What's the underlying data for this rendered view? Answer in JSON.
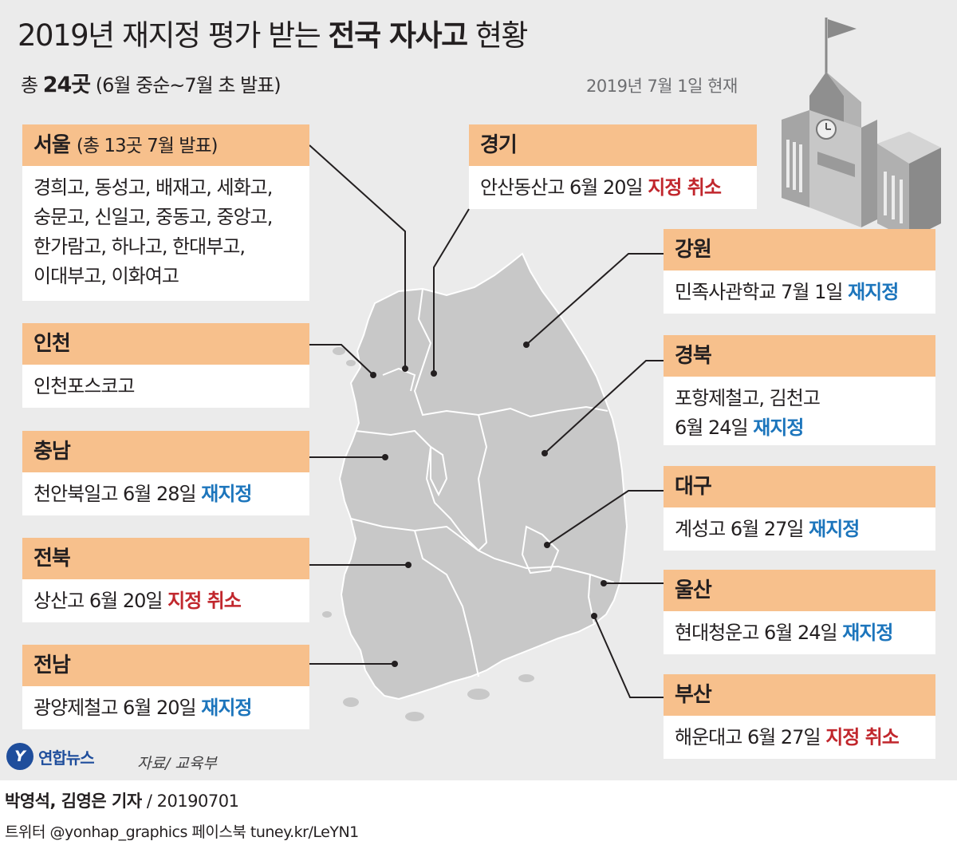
{
  "title": {
    "part1": "2019년 재지정 평가 받는 ",
    "bold": "전국 자사고",
    "part2": " 현황"
  },
  "subtitle": {
    "prefix": "총 ",
    "count": "24곳",
    "suffix": " (6월 중순~7월 초 발표)"
  },
  "as_of": "2019년 7월 1일 현재",
  "regions": {
    "seoul": {
      "name": "서울",
      "note": "(총 13곳 7월 발표)",
      "lines": [
        "경희고, 동성고, 배재고, 세화고,",
        "숭문고, 신일고, 중동고, 중앙고,",
        "한가람고, 하나고, 한대부고,",
        "이대부고, 이화여고"
      ]
    },
    "gyeonggi": {
      "name": "경기",
      "school": "안산동산고 6월 20일 ",
      "status": "지정 취소"
    },
    "gangwon": {
      "name": "강원",
      "school": "민족사관학교 7월 1일 ",
      "status": "재지정"
    },
    "incheon": {
      "name": "인천",
      "school": "인천포스코고"
    },
    "gyeongbuk": {
      "name": "경북",
      "line1": "포항제철고, 김천고",
      "line2": "6월 24일 ",
      "status": "재지정"
    },
    "chungnam": {
      "name": "충남",
      "school": "천안북일고 6월 28일 ",
      "status": "재지정"
    },
    "daegu": {
      "name": "대구",
      "school": "계성고 6월 27일 ",
      "status": "재지정"
    },
    "jeonbuk": {
      "name": "전북",
      "school": "상산고 6월 20일 ",
      "status": "지정 취소"
    },
    "ulsan": {
      "name": "울산",
      "school": "현대청운고 6월 24일 ",
      "status": "재지정"
    },
    "jeonnam": {
      "name": "전남",
      "school": "광양제철고 6월 20일 ",
      "status": "재지정"
    },
    "busan": {
      "name": "부산",
      "school": "해운대고 6월 27일 ",
      "status": "지정 취소"
    }
  },
  "logo": {
    "mark": "Y",
    "name": "연합뉴스"
  },
  "source": "자료/ 교육부",
  "credit": {
    "authors": "박영석, 김영은 기자",
    "date": " / 20190701"
  },
  "social": "트위터 @yonhap_graphics  페이스북 tuney.kr/LeYN1",
  "colors": {
    "header_bg": "#f7c08c",
    "cancel": "#c1272d",
    "renewed": "#1c75bc",
    "map_fill": "#c8c8c8",
    "background": "#ebebeb"
  }
}
